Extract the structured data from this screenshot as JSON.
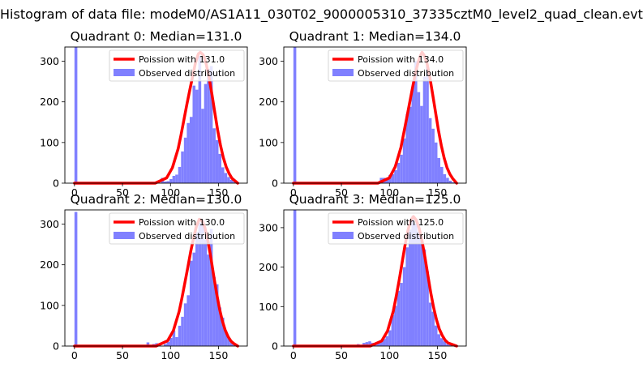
{
  "figure": {
    "suptitle": "Histogram of data file: modeM0/AS1A11_030T02_9000005310_37335cztM0_level2_quad_clean.evt"
  },
  "chart_data": [
    {
      "type": "bar",
      "title": "Quadrant 0: Median=131.0",
      "xlim": [
        -10,
        180
      ],
      "ylim": [
        0,
        335
      ],
      "xticks": [
        0,
        50,
        100,
        150
      ],
      "yticks": [
        0,
        100,
        200,
        300
      ],
      "grid": false,
      "legend_position": "top-right",
      "legend": [
        "Poission with 131.0",
        "Observed distribution"
      ],
      "hist_color": "#8080ff",
      "fit_color": "#ff0000",
      "bin_width": 3,
      "histogram": {
        "x": [
          0,
          78,
          84,
          90,
          93,
          96,
          99,
          102,
          105,
          108,
          111,
          114,
          117,
          120,
          123,
          126,
          129,
          132,
          135,
          138,
          141,
          144,
          147,
          150,
          153,
          156,
          159,
          162,
          165,
          168
        ],
        "y": [
          335,
          2,
          3,
          13,
          4,
          5,
          10,
          18,
          21,
          40,
          78,
          112,
          148,
          163,
          240,
          230,
          313,
          183,
          244,
          281,
          288,
          135,
          106,
          72,
          39,
          25,
          15,
          8,
          4,
          3
        ]
      },
      "fit": {
        "name": "Poission with 131.0",
        "x": [
          0,
          84,
          96,
          102,
          108,
          111,
          114,
          117,
          120,
          123,
          126,
          129,
          131,
          134,
          137,
          140,
          143,
          146,
          149,
          152,
          155,
          158,
          161,
          164,
          170
        ],
        "y": [
          0,
          0,
          13,
          38,
          85,
          119,
          156,
          193,
          228,
          262,
          296,
          318,
          322,
          316,
          295,
          262,
          221,
          176,
          132,
          94,
          63,
          40,
          24,
          12,
          0
        ]
      }
    },
    {
      "type": "bar",
      "title": "Quadrant 1: Median=134.0",
      "xlim": [
        -10,
        180
      ],
      "ylim": [
        0,
        335
      ],
      "xticks": [
        0,
        50,
        100,
        150
      ],
      "yticks": [
        0,
        100,
        200,
        300
      ],
      "grid": false,
      "legend_position": "top-right",
      "legend": [
        "Poission with 134.0",
        "Observed distribution"
      ],
      "hist_color": "#8080ff",
      "fit_color": "#ff0000",
      "bin_width": 3,
      "histogram": {
        "x": [
          0,
          81,
          87,
          90,
          93,
          96,
          99,
          102,
          105,
          108,
          111,
          114,
          117,
          120,
          123,
          126,
          129,
          132,
          135,
          138,
          141,
          144,
          147,
          150,
          153,
          156,
          159,
          162,
          165
        ],
        "y": [
          335,
          3,
          2,
          13,
          13,
          8,
          20,
          22,
          32,
          50,
          70,
          110,
          170,
          188,
          240,
          300,
          224,
          190,
          262,
          288,
          160,
          134,
          100,
          62,
          40,
          22,
          13,
          6,
          2
        ]
      },
      "fit": {
        "name": "Poission with 134.0",
        "x": [
          0,
          88,
          100,
          106,
          112,
          118,
          121,
          124,
          127,
          130,
          132,
          134,
          136,
          139,
          142,
          145,
          148,
          151,
          154,
          157,
          160,
          163,
          166,
          170
        ],
        "y": [
          0,
          0,
          13,
          40,
          88,
          160,
          197,
          234,
          270,
          298,
          312,
          322,
          315,
          296,
          262,
          219,
          175,
          131,
          93,
          62,
          38,
          22,
          11,
          0
        ]
      }
    },
    {
      "type": "bar",
      "title": "Quadrant 2: Median=130.0",
      "xlim": [
        -10,
        180
      ],
      "ylim": [
        0,
        335
      ],
      "xticks": [
        0,
        50,
        100,
        150
      ],
      "yticks": [
        0,
        100,
        200,
        300
      ],
      "grid": false,
      "legend_position": "top-right",
      "legend": [
        "Poission with 130.0",
        "Observed distribution"
      ],
      "hist_color": "#8080ff",
      "fit_color": "#ff0000",
      "bin_width": 3,
      "histogram": {
        "x": [
          0,
          33,
          45,
          51,
          69,
          75,
          81,
          84,
          87,
          93,
          96,
          99,
          102,
          105,
          108,
          111,
          114,
          117,
          120,
          123,
          126,
          129,
          132,
          135,
          138,
          141,
          144,
          147,
          150,
          153,
          156,
          159,
          162,
          165
        ],
        "y": [
          330,
          3,
          2,
          3,
          2,
          9,
          5,
          7,
          6,
          5,
          10,
          20,
          38,
          22,
          50,
          72,
          105,
          125,
          210,
          230,
          280,
          303,
          310,
          262,
          225,
          288,
          170,
          152,
          95,
          70,
          38,
          22,
          8,
          5
        ]
      },
      "fit": {
        "name": "Poission with 130.0",
        "x": [
          0,
          85,
          97,
          103,
          109,
          112,
          115,
          118,
          121,
          124,
          127,
          130,
          133,
          136,
          139,
          142,
          145,
          148,
          151,
          154,
          157,
          160,
          163,
          166,
          170
        ],
        "y": [
          0,
          0,
          13,
          38,
          85,
          119,
          156,
          193,
          232,
          265,
          295,
          312,
          308,
          290,
          258,
          218,
          173,
          130,
          92,
          62,
          39,
          23,
          12,
          6,
          0
        ]
      }
    },
    {
      "type": "bar",
      "title": "Quadrant 3: Median=125.0",
      "xlim": [
        -10,
        180
      ],
      "ylim": [
        0,
        345
      ],
      "xticks": [
        0,
        50,
        100,
        150
      ],
      "yticks": [
        0,
        100,
        200,
        300
      ],
      "grid": false,
      "legend_position": "top-right",
      "legend": [
        "Poission with 125.0",
        "Observed distribution"
      ],
      "hist_color": "#8080ff",
      "fit_color": "#ff0000",
      "bin_width": 3,
      "histogram": {
        "x": [
          0,
          66,
          72,
          75,
          78,
          81,
          84,
          87,
          90,
          93,
          96,
          99,
          102,
          105,
          108,
          111,
          114,
          117,
          120,
          123,
          126,
          129,
          132,
          135,
          138,
          141,
          144,
          147,
          150,
          153,
          156,
          159,
          162
        ],
        "y": [
          345,
          5,
          8,
          10,
          12,
          8,
          5,
          8,
          15,
          18,
          25,
          40,
          78,
          102,
          140,
          160,
          200,
          250,
          295,
          330,
          310,
          290,
          280,
          245,
          190,
          110,
          87,
          52,
          30,
          20,
          12,
          5,
          3
        ]
      },
      "fit": {
        "name": "Poission with 125.0",
        "x": [
          0,
          80,
          92,
          98,
          104,
          107,
          110,
          113,
          116,
          119,
          122,
          125,
          128,
          131,
          134,
          137,
          140,
          143,
          146,
          149,
          152,
          155,
          158,
          161,
          170
        ],
        "y": [
          0,
          0,
          13,
          38,
          88,
          125,
          165,
          208,
          252,
          290,
          318,
          328,
          319,
          298,
          266,
          225,
          180,
          136,
          98,
          67,
          43,
          27,
          15,
          8,
          0
        ]
      }
    }
  ]
}
